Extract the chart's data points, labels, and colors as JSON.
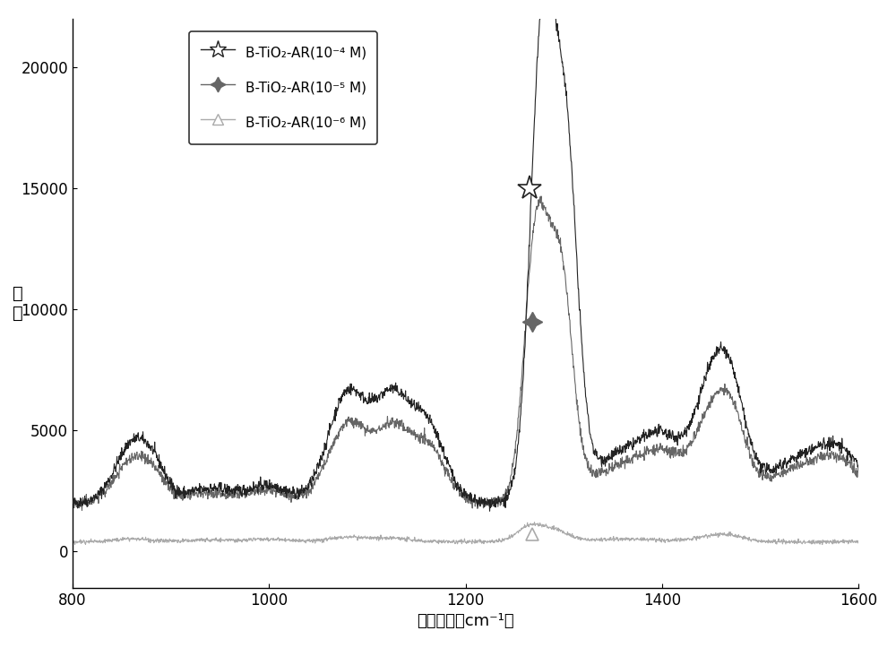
{
  "xlim": [
    800,
    1600
  ],
  "ylim": [
    -1500,
    22000
  ],
  "yticks": [
    0,
    5000,
    10000,
    15000,
    20000
  ],
  "xticks": [
    800,
    1000,
    1200,
    1400,
    1600
  ],
  "xlabel": "拉曼位移（cm⁻¹）",
  "ylabel": "强度",
  "legend_labels": [
    "B-TiO₂-AR(10⁻⁴ M)",
    "B-TiO₂-AR(10⁻⁵ M)",
    "B-TiO₂-AR(10⁻⁶ M)"
  ],
  "line_colors": [
    "#222222",
    "#666666",
    "#aaaaaa"
  ],
  "marker_x_star": 1265,
  "marker_y_star": 15000,
  "marker_x_plus": 1268,
  "marker_y_plus": 9500,
  "marker_x_tri": 1268,
  "marker_y_tri": 700,
  "background_color": "#ffffff",
  "seed": 42
}
